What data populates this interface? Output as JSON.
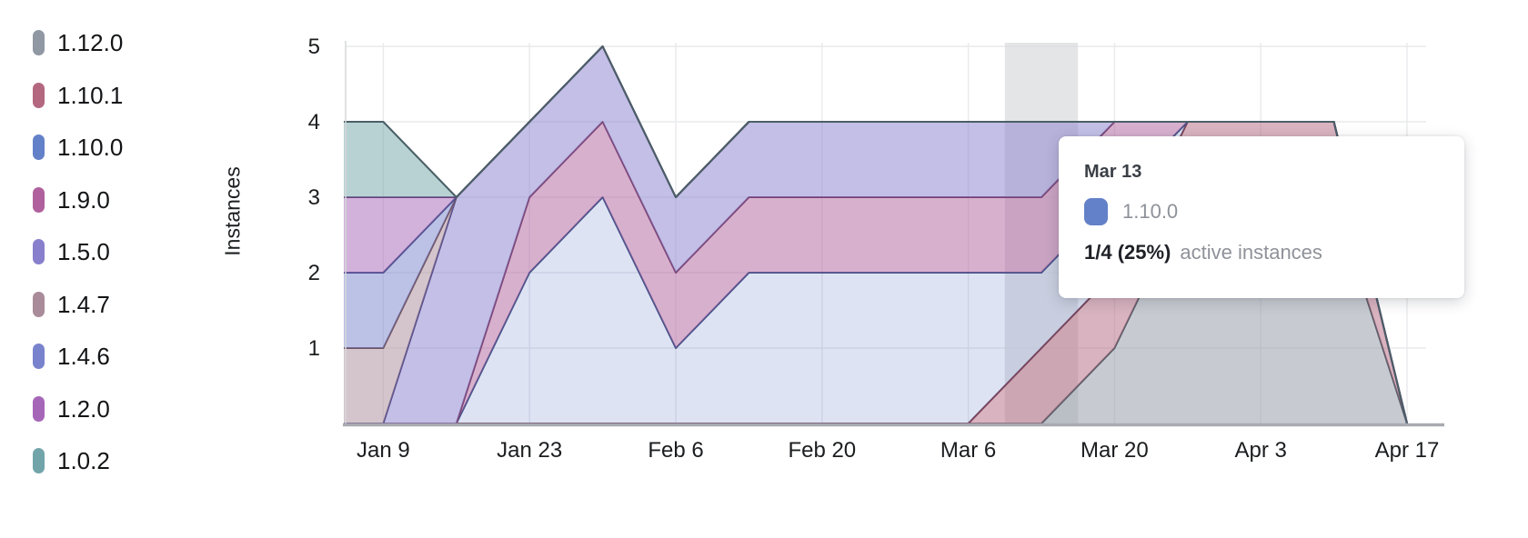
{
  "legend": {
    "items": [
      {
        "label": "1.12.0",
        "color": "#8f98a3"
      },
      {
        "label": "1.10.1",
        "color": "#b36880"
      },
      {
        "label": "1.10.0",
        "color": "#6381c8"
      },
      {
        "label": "1.9.0",
        "color": "#b0619d"
      },
      {
        "label": "1.5.0",
        "color": "#8880cd"
      },
      {
        "label": "1.4.7",
        "color": "#a98b99"
      },
      {
        "label": "1.4.6",
        "color": "#7983cd"
      },
      {
        "label": "1.2.0",
        "color": "#a666b8"
      },
      {
        "label": "1.0.2",
        "color": "#72a5aa"
      }
    ]
  },
  "chart_data": {
    "type": "area",
    "stacked": true,
    "title": "",
    "xlabel": "",
    "ylabel": "Instances",
    "ylim": [
      0,
      5
    ],
    "y_ticks": [
      "1",
      "2",
      "3",
      "4",
      "5"
    ],
    "grid": true,
    "legend_position": "left",
    "x": [
      "Jan 2",
      "Jan 9",
      "Jan 16",
      "Jan 23",
      "Jan 30",
      "Feb 6",
      "Feb 13",
      "Feb 20",
      "Feb 27",
      "Mar 6",
      "Mar 13",
      "Mar 20",
      "Mar 27",
      "Apr 3",
      "Apr 10",
      "Apr 17"
    ],
    "x_tick_labels": [
      "Jan 9",
      "Jan 23",
      "Feb 6",
      "Feb 20",
      "Mar 6",
      "Mar 20",
      "Apr 3",
      "Apr 17"
    ],
    "x_tick_indices": [
      1,
      3,
      5,
      7,
      9,
      11,
      13,
      15
    ],
    "series": [
      {
        "name": "1.12.0",
        "color": "#8f98a3",
        "line": "#555d68",
        "fill_opacity": 0.5,
        "values": [
          0,
          0,
          0,
          0,
          0,
          0,
          0,
          0,
          0,
          0,
          0,
          1,
          3,
          3,
          3,
          0
        ]
      },
      {
        "name": "1.10.1",
        "color": "#b36880",
        "line": "#7a4055",
        "fill_opacity": 0.5,
        "values": [
          0,
          0,
          0,
          0,
          0,
          0,
          0,
          0,
          0,
          0,
          1,
          1,
          1,
          1,
          1,
          0
        ]
      },
      {
        "name": "1.10.0",
        "color": "#6381c8",
        "line": "#3d5188",
        "fill_opacity": 0.22,
        "values": [
          0,
          0,
          0,
          2,
          3,
          1,
          2,
          2,
          2,
          2,
          1,
          1,
          0,
          0,
          0,
          0
        ]
      },
      {
        "name": "1.9.0",
        "color": "#b0619d",
        "line": "#7a3f6d",
        "fill_opacity": 0.5,
        "values": [
          0,
          0,
          0,
          1,
          1,
          1,
          1,
          1,
          1,
          1,
          1,
          1,
          0,
          0,
          0,
          0
        ]
      },
      {
        "name": "1.5.0",
        "color": "#8880cd",
        "line": "#524b8a",
        "fill_opacity": 0.5,
        "values": [
          0,
          0,
          3,
          1,
          1,
          1,
          1,
          1,
          1,
          1,
          1,
          0,
          0,
          0,
          0,
          0
        ]
      },
      {
        "name": "1.4.7",
        "color": "#a98b99",
        "line": "#6f5260",
        "fill_opacity": 0.5,
        "values": [
          1,
          1,
          0,
          0,
          0,
          0,
          0,
          0,
          0,
          0,
          0,
          0,
          0,
          0,
          0,
          0
        ]
      },
      {
        "name": "1.4.6",
        "color": "#7983cd",
        "line": "#474f8b",
        "fill_opacity": 0.5,
        "values": [
          1,
          1,
          0,
          0,
          0,
          0,
          0,
          0,
          0,
          0,
          0,
          0,
          0,
          0,
          0,
          0
        ]
      },
      {
        "name": "1.2.0",
        "color": "#a666b8",
        "line": "#6f3f80",
        "fill_opacity": 0.5,
        "values": [
          1,
          1,
          0,
          0,
          0,
          0,
          0,
          0,
          0,
          0,
          0,
          0,
          0,
          0,
          0,
          0
        ]
      },
      {
        "name": "1.0.2",
        "color": "#72a5aa",
        "line": "#4a5f66",
        "fill_opacity": 0.5,
        "values": [
          1,
          1,
          0,
          0,
          0,
          0,
          0,
          0,
          0,
          0,
          0,
          0,
          0,
          0,
          0,
          0
        ]
      }
    ],
    "hover": {
      "x_index": 10,
      "label": "Mar 13",
      "band_color": "#d9dadc"
    }
  },
  "tooltip": {
    "date": "Mar 13",
    "series_name": "1.10.0",
    "series_color": "#6381c8",
    "value_text": "1/4 (25%)",
    "caption": "active instances"
  }
}
